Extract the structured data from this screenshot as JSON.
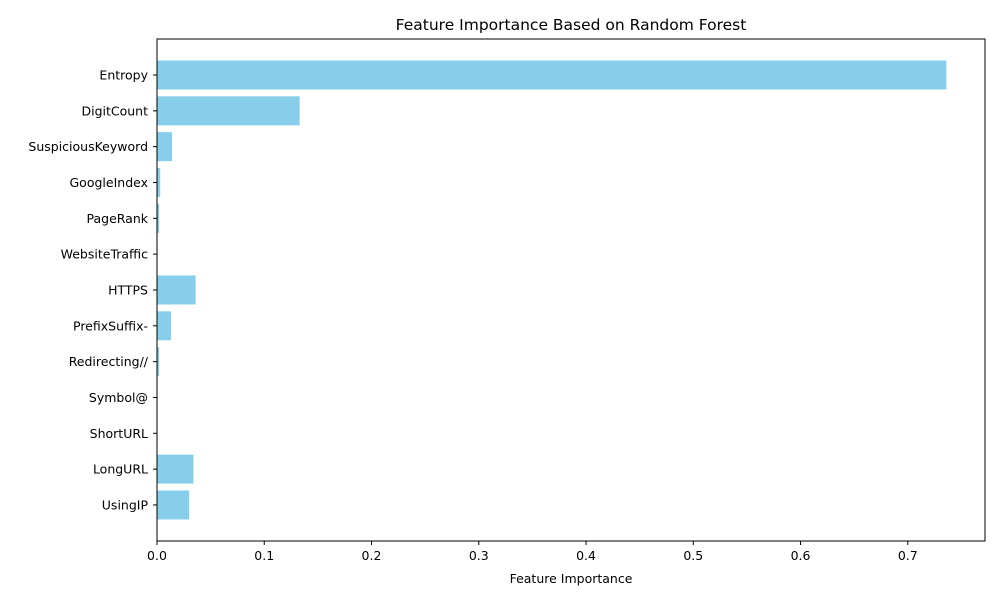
{
  "chart_data": {
    "type": "bar",
    "orientation": "horizontal",
    "title": "Feature Importance Based on Random Forest",
    "xlabel": "Feature Importance",
    "ylabel": "",
    "xlim": [
      0,
      0.772
    ],
    "xticks": [
      "0.0",
      "0.1",
      "0.2",
      "0.3",
      "0.4",
      "0.5",
      "0.6",
      "0.7"
    ],
    "grid": false,
    "bar_color": "#87CEEB",
    "categories": [
      "Entropy",
      "DigitCount",
      "SuspiciousKeyword",
      "GoogleIndex",
      "PageRank",
      "WebsiteTraffic",
      "HTTPS",
      "PrefixSuffix-",
      "Redirecting//",
      "Symbol@",
      "ShortURL",
      "LongURL",
      "UsingIP"
    ],
    "values": [
      0.736,
      0.133,
      0.014,
      0.003,
      0.002,
      0.0,
      0.036,
      0.013,
      0.002,
      0.0,
      0.0,
      0.034,
      0.03
    ]
  }
}
